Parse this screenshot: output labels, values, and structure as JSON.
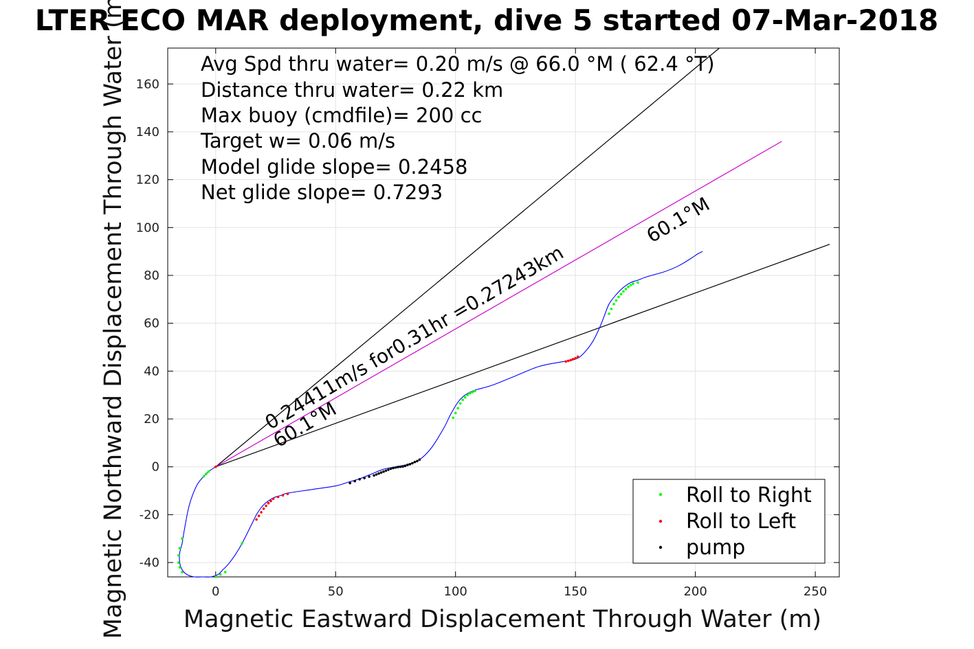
{
  "title": "LTER ECO MAR deployment, dive 5 started 07-Mar-2018",
  "chart_data": {
    "type": "scatter",
    "xlabel": "Magnetic Eastward Displacement Through Water (m)",
    "ylabel": "Magnetic Northward Displacement Through Water (m)",
    "xlim": [
      -20,
      260
    ],
    "ylim": [
      -46,
      175
    ],
    "xticks": [
      0,
      50,
      100,
      150,
      200,
      250
    ],
    "yticks": [
      -40,
      -20,
      0,
      20,
      40,
      60,
      80,
      100,
      120,
      140,
      160
    ],
    "grid": true,
    "legend_position": "bottom-right",
    "info_lines": [
      "Avg Spd thru water=  0.20 m/s @  66.0 °M ( 62.4 °T)",
      "Distance thru water=  0.22 km",
      "Max buoy (cmdfile)= 200 cc",
      "Target w= 0.06 m/s",
      "Model glide slope= 0.2458",
      "Net glide slope= 0.7293"
    ],
    "annotations": {
      "speed_distance": "0.24411m/s for0.31hr =0.27243km",
      "heading_label_upper": "60.1°M",
      "heading_label_lower": "60.1°M"
    },
    "reference_lines": [
      {
        "name": "upper",
        "color": "#000000",
        "x": [
          0,
          210
        ],
        "y": [
          0,
          175
        ]
      },
      {
        "name": "lower",
        "color": "#000000",
        "x": [
          0,
          256
        ],
        "y": [
          0,
          93
        ]
      },
      {
        "name": "heading",
        "color": "#cc00cc",
        "x": [
          0,
          236
        ],
        "y": [
          0,
          136
        ]
      }
    ],
    "track": {
      "color": "#0000ff",
      "x": [
        0,
        -3,
        -5,
        -8,
        -11,
        -13,
        -14,
        -15,
        -15,
        -14,
        -12,
        -9,
        -5,
        -2,
        1,
        3,
        5,
        8,
        11,
        15,
        17,
        19,
        21,
        24,
        27,
        30,
        40,
        50,
        55,
        60,
        65,
        70,
        75,
        80,
        85,
        90,
        95,
        98,
        101,
        104,
        108,
        115,
        125,
        135,
        145,
        150,
        153,
        157,
        160,
        162,
        164,
        167,
        170,
        173,
        176,
        180,
        187,
        193,
        198,
        201,
        203
      ],
      "y": [
        0,
        -2,
        -4,
        -8,
        -16,
        -26,
        -32,
        -36,
        -40,
        -43,
        -45,
        -46,
        -46,
        -46,
        -45,
        -43,
        -41,
        -37,
        -32,
        -24,
        -20,
        -17,
        -15,
        -13,
        -12,
        -11,
        -9.5,
        -8,
        -6.5,
        -5,
        -3,
        -1,
        0,
        1,
        3,
        8,
        16,
        22,
        27,
        30,
        32,
        34,
        38,
        42,
        44,
        45,
        47,
        52,
        58,
        63,
        68,
        72,
        75,
        77,
        78,
        79.5,
        81.5,
        84,
        87,
        89,
        90
      ]
    },
    "series": [
      {
        "name": "Roll to Right",
        "color": "#00ff00",
        "x": [
          -5,
          -4,
          -3,
          -14,
          -15,
          -15.5,
          -15.5,
          -15,
          -14,
          0,
          2,
          4,
          11,
          99,
          100,
          101,
          102,
          103,
          104,
          105,
          106,
          107,
          108,
          164,
          165,
          166,
          167,
          168,
          169,
          170,
          171,
          172,
          173,
          174,
          176
        ],
        "y": [
          -4,
          -3,
          -2,
          -30,
          -34,
          -37,
          -40,
          -42,
          -44,
          -46,
          -45,
          -44,
          -32,
          20.5,
          22.5,
          24.5,
          26.5,
          28,
          29,
          30,
          30.7,
          31.2,
          31.6,
          64,
          66,
          68,
          69.5,
          71,
          72.2,
          73.3,
          74.3,
          75.2,
          75.9,
          76.5,
          77
        ]
      },
      {
        "name": "Roll to Left",
        "color": "#ff0000",
        "x": [
          0,
          17,
          18,
          19,
          20,
          21,
          22,
          23,
          24,
          26,
          28,
          30,
          146,
          147,
          148,
          149,
          150,
          151
        ],
        "y": [
          0,
          -22,
          -20.5,
          -19,
          -17.5,
          -16.3,
          -15.2,
          -14.3,
          -13.4,
          -12.6,
          -11.9,
          -11.3,
          44,
          44.3,
          44.6,
          45,
          45.4,
          46
        ]
      },
      {
        "name": "pump",
        "color": "#000000",
        "x": [
          56,
          58,
          60,
          62,
          64,
          66,
          67,
          68,
          69,
          70,
          71,
          72,
          73,
          74,
          75,
          76,
          77,
          78,
          79,
          80,
          81,
          82,
          83,
          84,
          85
        ],
        "y": [
          -6.8,
          -6,
          -5.2,
          -4.7,
          -4.1,
          -3.6,
          -3.2,
          -2.8,
          -2.4,
          -2,
          -1.6,
          -1.2,
          -0.8,
          -0.5,
          -0.3,
          -0.1,
          0,
          0.1,
          0.4,
          0.8,
          1.1,
          1.5,
          2,
          2.4,
          3
        ]
      }
    ]
  }
}
